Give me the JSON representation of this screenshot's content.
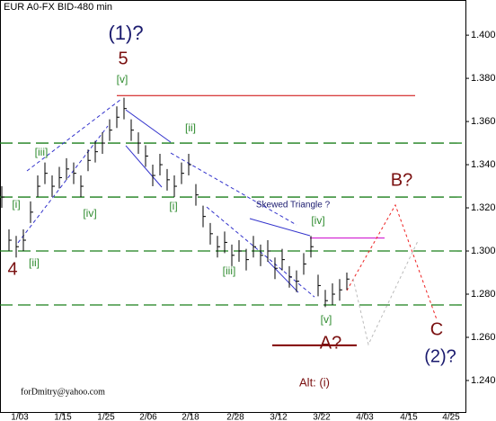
{
  "chart_data": {
    "type": "ohlc",
    "title": "EUR A0-FX BID-480 min",
    "color": "#000000",
    "x": [
      0,
      2,
      4,
      6,
      8,
      10,
      12,
      14,
      16,
      18,
      20,
      22,
      24,
      26,
      28,
      30,
      32,
      34,
      36,
      38,
      40,
      42,
      44,
      46,
      48,
      50,
      52,
      54,
      56,
      58,
      60,
      62,
      64,
      66,
      68,
      70,
      72,
      74,
      76,
      78,
      80,
      82,
      84,
      86,
      88,
      90,
      92,
      94,
      96
    ],
    "close": [
      1.325,
      1.305,
      1.302,
      1.305,
      1.318,
      1.33,
      1.336,
      1.33,
      1.334,
      1.338,
      1.336,
      1.33,
      1.342,
      1.346,
      1.35,
      1.356,
      1.362,
      1.366,
      1.356,
      1.35,
      1.344,
      1.335,
      1.34,
      1.333,
      1.33,
      1.336,
      1.34,
      1.326,
      1.316,
      1.308,
      1.302,
      1.304,
      1.298,
      1.3,
      1.296,
      1.302,
      1.298,
      1.3,
      1.292,
      1.296,
      1.288,
      1.286,
      1.294,
      1.302,
      1.284,
      1.277,
      1.28,
      1.282,
      1.287
    ],
    "high": [
      1.33,
      1.31,
      1.307,
      1.31,
      1.323,
      1.335,
      1.341,
      1.335,
      1.339,
      1.343,
      1.341,
      1.335,
      1.347,
      1.351,
      1.355,
      1.361,
      1.367,
      1.371,
      1.361,
      1.355,
      1.349,
      1.34,
      1.345,
      1.338,
      1.335,
      1.341,
      1.345,
      1.331,
      1.321,
      1.313,
      1.307,
      1.309,
      1.303,
      1.305,
      1.301,
      1.307,
      1.303,
      1.305,
      1.297,
      1.301,
      1.293,
      1.291,
      1.299,
      1.307,
      1.289,
      1.282,
      1.285,
      1.287,
      1.29
    ],
    "low": [
      1.32,
      1.3,
      1.297,
      1.3,
      1.313,
      1.325,
      1.331,
      1.325,
      1.329,
      1.333,
      1.331,
      1.325,
      1.337,
      1.341,
      1.345,
      1.351,
      1.357,
      1.361,
      1.351,
      1.345,
      1.339,
      1.33,
      1.335,
      1.328,
      1.325,
      1.331,
      1.335,
      1.321,
      1.311,
      1.303,
      1.297,
      1.299,
      1.293,
      1.295,
      1.291,
      1.297,
      1.293,
      1.295,
      1.287,
      1.291,
      1.283,
      1.281,
      1.289,
      1.297,
      1.279,
      1.274,
      1.275,
      1.277,
      1.282
    ],
    "xlim": [
      -0.5,
      129
    ],
    "ylim": [
      1.2254,
      1.4163
    ],
    "xticks": [
      {
        "value": 5,
        "label": "1/03"
      },
      {
        "value": 17,
        "label": "1/15"
      },
      {
        "value": 29,
        "label": "1/25"
      },
      {
        "value": 40.75,
        "label": "2/06"
      },
      {
        "value": 52.5,
        "label": "2/18"
      },
      {
        "value": 65,
        "label": "2/28"
      },
      {
        "value": 77,
        "label": "3/12"
      },
      {
        "value": 89,
        "label": "3/22"
      },
      {
        "value": 101,
        "label": "4/03"
      },
      {
        "value": 113.25,
        "label": "4/15"
      },
      {
        "value": 125,
        "label": "4/25"
      }
    ],
    "yticks": [
      {
        "value": 1.24,
        "label": "1.240"
      },
      {
        "value": 1.26,
        "label": "1.260"
      },
      {
        "value": 1.28,
        "label": "1.280"
      },
      {
        "value": 1.3,
        "label": "1.300"
      },
      {
        "value": 1.32,
        "label": "1.320"
      },
      {
        "value": 1.34,
        "label": "1.340"
      },
      {
        "value": 1.36,
        "label": "1.360"
      },
      {
        "value": 1.38,
        "label": "1.380"
      },
      {
        "value": 1.4,
        "label": "1.400"
      }
    ],
    "levels": [
      1.35,
      1.325,
      1.3,
      1.275
    ],
    "level_color": "#1a7f1a",
    "segments": [
      {
        "color": "#cc0000",
        "style": "solid",
        "x": [
          32,
          115
        ],
        "y": [
          1.372,
          1.372
        ]
      },
      {
        "color": "#cc00cc",
        "style": "solid",
        "x": [
          85.75,
          106.5
        ],
        "y": [
          1.306,
          1.306
        ]
      },
      {
        "color": "#800000",
        "style": "thick",
        "x": [
          75.25,
          98.75
        ],
        "y": [
          1.2563,
          1.2563
        ]
      },
      {
        "color": "#3333cc",
        "style": "dashed",
        "x": [
          7,
          33.25
        ],
        "y": [
          1.3371,
          1.3704
        ]
      },
      {
        "color": "#3333cc",
        "style": "dashed",
        "x": [
          4.5,
          29.5
        ],
        "y": [
          1.3038,
          1.3579
        ]
      },
      {
        "color": "#3333cc",
        "style": "dashed",
        "x": [
          47,
          82
        ],
        "y": [
          1.3454,
          1.3121
        ]
      },
      {
        "color": "#3333cc",
        "style": "dashed",
        "x": [
          57,
          87
        ],
        "y": [
          1.3204,
          1.2787
        ]
      },
      {
        "color": "#3333cc",
        "style": "solid",
        "x": [
          34.5,
          47
        ],
        "y": [
          1.3654,
          1.3504
        ]
      },
      {
        "color": "#3333cc",
        "style": "solid",
        "x": [
          34.5,
          44.5
        ],
        "y": [
          1.3488,
          1.3296
        ]
      },
      {
        "color": "#3333cc",
        "style": "solid",
        "x": [
          69,
          85.75
        ],
        "y": [
          1.315,
          1.3071
        ]
      },
      {
        "color": "#3333cc",
        "style": "solid",
        "x": [
          74,
          82.5
        ],
        "y": [
          1.2954,
          1.2808
        ]
      },
      {
        "color": "#ee2222",
        "style": "dotted",
        "x": [
          96,
          109.5,
          121
        ],
        "y": [
          1.2817,
          1.3213,
          1.2683
        ]
      },
      {
        "color": "#bbbbbb",
        "style": "dotted",
        "x": [
          97.75,
          102,
          115.75
        ],
        "y": [
          1.2871,
          1.2567,
          1.3046
        ]
      }
    ],
    "annotations": [
      {
        "text": "(1)?",
        "color": "#1a1a6e"
      },
      {
        "text": "5",
        "color": "#7a1010"
      },
      {
        "text": "[v]",
        "color": "#2e8b2e"
      },
      {
        "text": "[iii]",
        "color": "#2e8b2e"
      },
      {
        "text": "[i]",
        "color": "#2e8b2e"
      },
      {
        "text": "[ii]",
        "color": "#2e8b2e"
      },
      {
        "text": "4",
        "color": "#7a1010"
      },
      {
        "text": "[iv]",
        "color": "#2e8b2e"
      },
      {
        "text": "[ii]",
        "color": "#2e8b2e"
      },
      {
        "text": "[i]",
        "color": "#2e8b2e"
      },
      {
        "text": "[iii]",
        "color": "#2e8b2e"
      },
      {
        "text": "Skewed Triangle ?",
        "color": "#1a1a6e"
      },
      {
        "text": "[iv]",
        "color": "#2e8b2e"
      },
      {
        "text": "[v]",
        "color": "#2e8b2e"
      },
      {
        "text": "A?",
        "color": "#7a1010"
      },
      {
        "text": "B?",
        "color": "#7a1010"
      },
      {
        "text": "C",
        "color": "#7a1010"
      },
      {
        "text": "(2)?",
        "color": "#1a1a6e"
      },
      {
        "text": "Alt: (i)",
        "color": "#7a1010"
      },
      {
        "text": "forDmitry@yahoo.com",
        "color": "#000000"
      }
    ]
  }
}
